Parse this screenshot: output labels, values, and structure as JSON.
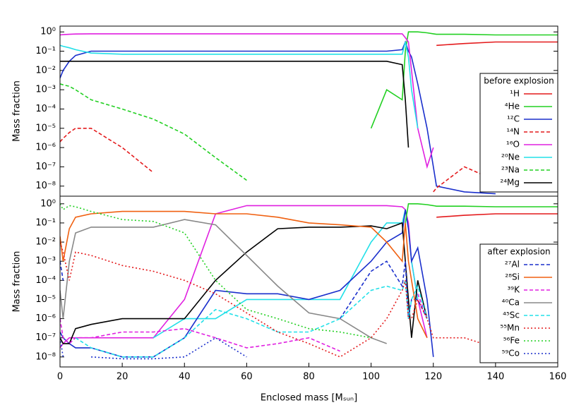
{
  "chart_data": [
    {
      "type": "line",
      "log_y": true,
      "ylabel": "Mass fraction",
      "legend_title": "before explosion",
      "legend": "right",
      "xlim": [
        0,
        160
      ],
      "ylim": [
        3e-09,
        2
      ],
      "yticks": [
        {
          "value": 1,
          "label": "10⁰"
        },
        {
          "value": 0.1,
          "label": "10⁻¹"
        },
        {
          "value": 0.01,
          "label": "10⁻²"
        },
        {
          "value": 0.001,
          "label": "10⁻³"
        },
        {
          "value": 0.0001,
          "label": "10⁻⁴"
        },
        {
          "value": 1e-05,
          "label": "10⁻⁵"
        },
        {
          "value": 1e-06,
          "label": "10⁻⁶"
        },
        {
          "value": 1e-07,
          "label": "10⁻⁷"
        },
        {
          "value": 1e-08,
          "label": "10⁻⁸"
        }
      ],
      "x": [
        0,
        1,
        3,
        5,
        10,
        20,
        30,
        40,
        50,
        60,
        70,
        80,
        90,
        100,
        105,
        110,
        111,
        112,
        113,
        115,
        118,
        120,
        121,
        130,
        140,
        160
      ],
      "series": [
        {
          "name": "¹H",
          "color": "#e41a1c",
          "dash": "solid",
          "values": [
            null,
            null,
            null,
            null,
            null,
            null,
            null,
            null,
            null,
            null,
            null,
            null,
            null,
            null,
            null,
            null,
            null,
            null,
            null,
            null,
            null,
            null,
            0.2,
            0.25,
            0.3,
            0.3
          ]
        },
        {
          "name": "⁴He",
          "color": "#22d022",
          "dash": "solid",
          "values": [
            null,
            null,
            null,
            null,
            null,
            null,
            null,
            null,
            null,
            null,
            null,
            null,
            null,
            1e-05,
            0.001,
            0.0003,
            0.1,
            1,
            1,
            1,
            0.9,
            0.8,
            0.75,
            0.75,
            0.7,
            0.7
          ]
        },
        {
          "name": "¹²C",
          "color": "#1a2fcc",
          "dash": "solid",
          "values": [
            0.004,
            0.01,
            0.03,
            0.06,
            0.1,
            0.1,
            0.1,
            0.1,
            0.1,
            0.1,
            0.1,
            0.1,
            0.1,
            0.1,
            0.1,
            0.12,
            0.3,
            0.1,
            0.05,
            0.002,
            1e-05,
            1e-07,
            1e-08,
            5e-09,
            4e-09,
            null
          ]
        },
        {
          "name": "¹⁴N",
          "color": "#e41a1c",
          "dash": "dashed",
          "values": [
            2e-06,
            3e-06,
            6e-06,
            1e-05,
            1e-05,
            1e-06,
            5e-08,
            null,
            null,
            null,
            null,
            null,
            null,
            null,
            null,
            null,
            null,
            null,
            null,
            null,
            null,
            5e-09,
            8e-09,
            1e-07,
            2e-08,
            2e-08
          ]
        },
        {
          "name": "¹⁶O",
          "color": "#e020e0",
          "dash": "solid",
          "values": [
            0.7,
            0.72,
            0.75,
            0.78,
            0.8,
            0.8,
            0.8,
            0.8,
            0.8,
            0.8,
            0.8,
            0.8,
            0.8,
            0.8,
            0.8,
            0.8,
            0.5,
            0.3,
            0.01,
            1e-05,
            1e-07,
            1e-06,
            null,
            null,
            null,
            null
          ]
        },
        {
          "name": "²⁰Ne",
          "color": "#22e0e8",
          "dash": "solid",
          "values": [
            0.2,
            0.18,
            0.15,
            0.12,
            0.08,
            0.07,
            0.07,
            0.07,
            0.07,
            0.07,
            0.07,
            0.07,
            0.07,
            0.07,
            0.07,
            0.07,
            0.3,
            0.05,
            0.001,
            1e-05,
            null,
            null,
            null,
            null,
            null,
            null
          ]
        },
        {
          "name": "²³Na",
          "color": "#22d022",
          "dash": "dashed",
          "values": [
            0.002,
            0.0018,
            0.0015,
            0.001,
            0.0003,
            0.0001,
            3e-05,
            5e-06,
            3e-07,
            2e-08,
            null,
            null,
            null,
            null,
            null,
            null,
            null,
            null,
            null,
            null,
            null,
            null,
            null,
            null,
            null,
            null
          ]
        },
        {
          "name": "²⁴Mg",
          "color": "#000000",
          "dash": "solid",
          "values": [
            0.03,
            0.03,
            0.03,
            0.03,
            0.03,
            0.03,
            0.03,
            0.03,
            0.03,
            0.03,
            0.03,
            0.03,
            0.03,
            0.03,
            0.03,
            0.02,
            0.0003,
            1e-06,
            null,
            null,
            null,
            null,
            null,
            null,
            null,
            null
          ]
        }
      ]
    },
    {
      "type": "line",
      "log_y": true,
      "ylabel": "Mass fraction",
      "xlabel": "Enclosed mass [Mₛᵤₙ]",
      "legend_title": "after explosion",
      "legend": "right",
      "xlim": [
        0,
        160
      ],
      "xticks": [
        0,
        20,
        40,
        60,
        80,
        100,
        120,
        140,
        160
      ],
      "ylim": [
        3e-09,
        2.5
      ],
      "yticks": [
        {
          "value": 1,
          "label": "10⁰"
        },
        {
          "value": 0.1,
          "label": "10⁻¹"
        },
        {
          "value": 0.01,
          "label": "10⁻²"
        },
        {
          "value": 0.001,
          "label": "10⁻³"
        },
        {
          "value": 0.0001,
          "label": "10⁻⁴"
        },
        {
          "value": 1e-05,
          "label": "10⁻⁵"
        },
        {
          "value": 1e-06,
          "label": "10⁻⁶"
        },
        {
          "value": 1e-07,
          "label": "10⁻⁷"
        },
        {
          "value": 1e-08,
          "label": "10⁻⁸"
        }
      ],
      "x": [
        0,
        1,
        3,
        5,
        10,
        20,
        30,
        40,
        50,
        60,
        70,
        80,
        90,
        100,
        105,
        110,
        111,
        112,
        113,
        115,
        118,
        120,
        121,
        130,
        140,
        160
      ],
      "series": [
        {
          "color": "#e020e0",
          "dash": "solid",
          "values": [
            3e-08,
            5e-08,
            1e-07,
            1e-07,
            1e-07,
            1e-07,
            1e-07,
            1e-05,
            0.3,
            0.8,
            0.8,
            0.8,
            0.8,
            0.8,
            0.8,
            0.7,
            0.5,
            0.1,
            0.001,
            1e-05,
            1e-07,
            null,
            null,
            null,
            null,
            null
          ]
        },
        {
          "color": "#22e0e8",
          "dash": "solid",
          "values": [
            null,
            null,
            null,
            null,
            null,
            null,
            1e-07,
            1e-06,
            1e-06,
            1e-05,
            1e-05,
            1e-05,
            1e-05,
            0.01,
            0.1,
            0.1,
            0.5,
            0.05,
            0.001,
            1e-05,
            null,
            null,
            null,
            null,
            null,
            null
          ]
        },
        {
          "color": "#1a2fcc",
          "dash": "solid",
          "values": [
            2e-07,
            1e-07,
            5e-08,
            3e-08,
            3e-08,
            1e-08,
            1e-08,
            1e-07,
            3e-05,
            2e-05,
            2e-05,
            1e-05,
            3e-05,
            0.001,
            0.01,
            0.03,
            0.5,
            0.05,
            0.001,
            0.005,
            1e-05,
            1e-08,
            null,
            null,
            null,
            null
          ]
        },
        {
          "color": "#000000",
          "dash": "solid",
          "values": [
            1e-07,
            5e-08,
            5e-08,
            3e-07,
            5e-07,
            1e-06,
            1e-06,
            1e-06,
            0.0001,
            0.003,
            0.05,
            0.06,
            0.06,
            0.07,
            0.05,
            0.1,
            0.001,
            1e-05,
            1e-07,
            0.0001,
            1e-06,
            null,
            null,
            null,
            null,
            null
          ]
        },
        {
          "color": "#22d022",
          "dash": "solid",
          "values": [
            null,
            null,
            null,
            null,
            null,
            null,
            null,
            null,
            null,
            null,
            null,
            null,
            null,
            null,
            null,
            null,
            0.1,
            1,
            1,
            1,
            0.9,
            0.8,
            0.75,
            0.75,
            0.7,
            0.7
          ]
        },
        {
          "color": "#e41a1c",
          "dash": "solid",
          "values": [
            null,
            null,
            null,
            null,
            null,
            null,
            null,
            null,
            null,
            null,
            null,
            null,
            null,
            null,
            null,
            null,
            null,
            null,
            null,
            null,
            null,
            null,
            0.2,
            0.25,
            0.3,
            0.3
          ]
        },
        {
          "name": "²⁷Al",
          "color": "#1a2fcc",
          "dash": "dashed",
          "values": [
            0.001,
            0.0001,
            null,
            null,
            null,
            null,
            null,
            null,
            null,
            null,
            null,
            null,
            1e-06,
            0.0003,
            0.001,
            5e-05,
            0.001,
            1e-06,
            1e-05,
            1e-05,
            1e-06,
            null,
            null,
            null,
            null,
            null
          ]
        },
        {
          "name": "²⁸Si",
          "color": "#f06010",
          "dash": "solid",
          "values": [
            0.02,
            0.001,
            0.05,
            0.2,
            0.3,
            0.4,
            0.4,
            0.4,
            0.3,
            0.3,
            0.2,
            0.1,
            0.08,
            0.06,
            0.01,
            0.001,
            0.1,
            0.001,
            0.0001,
            1e-06,
            1e-07,
            null,
            null,
            null,
            null,
            null
          ]
        },
        {
          "name": "³⁹K",
          "color": "#e020e0",
          "dash": "dashed",
          "values": [
            1e-06,
            1e-07,
            5e-08,
            1e-07,
            1e-07,
            2e-07,
            2e-07,
            3e-07,
            1e-07,
            3e-08,
            5e-08,
            1e-07,
            2e-08,
            null,
            null,
            null,
            null,
            null,
            null,
            2e-05,
            1e-06,
            null,
            null,
            null,
            null,
            null
          ]
        },
        {
          "name": "⁴⁰Ca",
          "color": "#888888",
          "dash": "solid",
          "values": [
            3e-05,
            1e-06,
            0.001,
            0.03,
            0.06,
            0.06,
            0.06,
            0.15,
            0.08,
            0.002,
            5e-05,
            2e-06,
            1e-06,
            1e-07,
            5e-08,
            null,
            null,
            null,
            null,
            null,
            null,
            null,
            null,
            null,
            null,
            null
          ]
        },
        {
          "name": "⁴⁵Sc",
          "color": "#22e0e8",
          "dash": "dashed",
          "values": [
            null,
            null,
            null,
            1e-07,
            3e-08,
            1e-08,
            1e-08,
            1e-07,
            3e-06,
            1e-06,
            2e-07,
            2e-07,
            1e-06,
            3e-05,
            5e-05,
            3e-05,
            0.0001,
            1e-06,
            1e-05,
            5e-05,
            1e-06,
            null,
            null,
            null,
            null,
            null
          ]
        },
        {
          "name": "⁵⁵Mn",
          "color": "#e41a1c",
          "dash": "dotted",
          "values": [
            0.01,
            0.003,
            0.0001,
            0.003,
            0.002,
            0.0006,
            0.0003,
            0.0001,
            2e-05,
            2e-06,
            2e-07,
            5e-08,
            1e-08,
            1e-07,
            1e-06,
            3e-05,
            0.0001,
            1e-06,
            1e-06,
            1e-05,
            1e-06,
            1e-07,
            1e-07,
            1e-07,
            3e-08,
            2e-08
          ]
        },
        {
          "name": "⁵⁶Fe",
          "color": "#22d022",
          "dash": "dotted",
          "values": [
            1,
            0.5,
            0.8,
            0.7,
            0.4,
            0.15,
            0.12,
            0.03,
            0.0001,
            3e-06,
            1e-06,
            3e-07,
            2e-07,
            1e-07,
            null,
            null,
            null,
            null,
            null,
            null,
            null,
            null,
            null,
            null,
            null,
            null
          ]
        },
        {
          "name": "⁵⁹Co",
          "color": "#1a2fcc",
          "dash": "dotted",
          "values": [
            1e-07,
            1e-08,
            null,
            null,
            1e-08,
            8e-09,
            8e-09,
            1e-08,
            1e-07,
            1e-08,
            null,
            null,
            null,
            null,
            null,
            null,
            null,
            null,
            null,
            null,
            null,
            null,
            null,
            null,
            null,
            null
          ]
        }
      ]
    }
  ]
}
